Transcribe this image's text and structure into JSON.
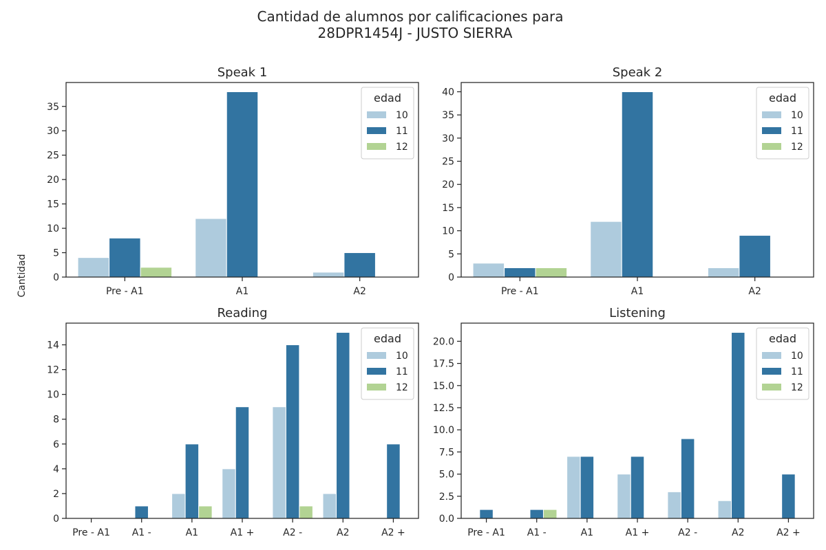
{
  "figure": {
    "title_line1": "Cantidad de alumnos por calificaciones para",
    "title_line2": "28DPR1454J - JUSTO SIERRA",
    "ylabel": "Cantidad"
  },
  "colors": {
    "10": "#aecbdd",
    "11": "#3274a1",
    "12": "#b2d393"
  },
  "chart_data": [
    {
      "type": "bar",
      "title": "Speak 1",
      "categories": [
        "Pre - A1",
        "A1",
        "A2"
      ],
      "ylim": [
        0,
        39.9
      ],
      "yticks": [
        0,
        5,
        10,
        15,
        20,
        25,
        30,
        35
      ],
      "yticklabels": [
        "0",
        "5",
        "10",
        "15",
        "20",
        "25",
        "30",
        "35"
      ],
      "legend": {
        "title": "edad",
        "position": "top-right",
        "entries": [
          "10",
          "11",
          "12"
        ]
      },
      "series": [
        {
          "name": "10",
          "values": [
            4,
            12,
            1
          ]
        },
        {
          "name": "11",
          "values": [
            8,
            38,
            5
          ]
        },
        {
          "name": "12",
          "values": [
            2,
            0,
            0
          ]
        }
      ]
    },
    {
      "type": "bar",
      "title": "Speak 2",
      "categories": [
        "Pre - A1",
        "A1",
        "A2"
      ],
      "ylim": [
        0,
        42
      ],
      "yticks": [
        0,
        5,
        10,
        15,
        20,
        25,
        30,
        35,
        40
      ],
      "yticklabels": [
        "0",
        "5",
        "10",
        "15",
        "20",
        "25",
        "30",
        "35",
        "40"
      ],
      "legend": {
        "title": "edad",
        "position": "top-right",
        "entries": [
          "10",
          "11",
          "12"
        ]
      },
      "series": [
        {
          "name": "10",
          "values": [
            3,
            12,
            2
          ]
        },
        {
          "name": "11",
          "values": [
            2,
            40,
            9
          ]
        },
        {
          "name": "12",
          "values": [
            2,
            0,
            0
          ]
        }
      ]
    },
    {
      "type": "bar",
      "title": "Reading",
      "categories": [
        "Pre - A1",
        "A1 -",
        "A1",
        "A1 +",
        "A2 -",
        "A2",
        "A2 +"
      ],
      "ylim": [
        0,
        15.75
      ],
      "yticks": [
        0,
        2,
        4,
        6,
        8,
        10,
        12,
        14
      ],
      "yticklabels": [
        "0",
        "2",
        "4",
        "6",
        "8",
        "10",
        "12",
        "14"
      ],
      "legend": {
        "title": "edad",
        "position": "top-right",
        "entries": [
          "10",
          "11",
          "12"
        ]
      },
      "series": [
        {
          "name": "10",
          "values": [
            0,
            0,
            2,
            4,
            9,
            2,
            0
          ]
        },
        {
          "name": "11",
          "values": [
            0,
            1,
            6,
            9,
            14,
            15,
            6
          ]
        },
        {
          "name": "12",
          "values": [
            0,
            0,
            1,
            0,
            1,
            0,
            0
          ]
        }
      ]
    },
    {
      "type": "bar",
      "title": "Listening",
      "categories": [
        "Pre - A1",
        "A1 -",
        "A1",
        "A1 +",
        "A2 -",
        "A2",
        "A2 +"
      ],
      "ylim": [
        0,
        22.05
      ],
      "yticks": [
        0,
        2.5,
        5,
        7.5,
        10,
        12.5,
        15,
        17.5,
        20
      ],
      "yticklabels": [
        "0.0",
        "2.5",
        "5.0",
        "7.5",
        "10.0",
        "12.5",
        "15.0",
        "17.5",
        "20.0"
      ],
      "legend": {
        "title": "edad",
        "position": "top-right",
        "entries": [
          "10",
          "11",
          "12"
        ]
      },
      "series": [
        {
          "name": "10",
          "values": [
            0,
            0,
            7,
            5,
            3,
            2,
            0
          ]
        },
        {
          "name": "11",
          "values": [
            1,
            1,
            7,
            7,
            9,
            21,
            5
          ]
        },
        {
          "name": "12",
          "values": [
            0,
            1,
            0,
            0,
            0,
            0,
            0
          ]
        }
      ]
    }
  ]
}
